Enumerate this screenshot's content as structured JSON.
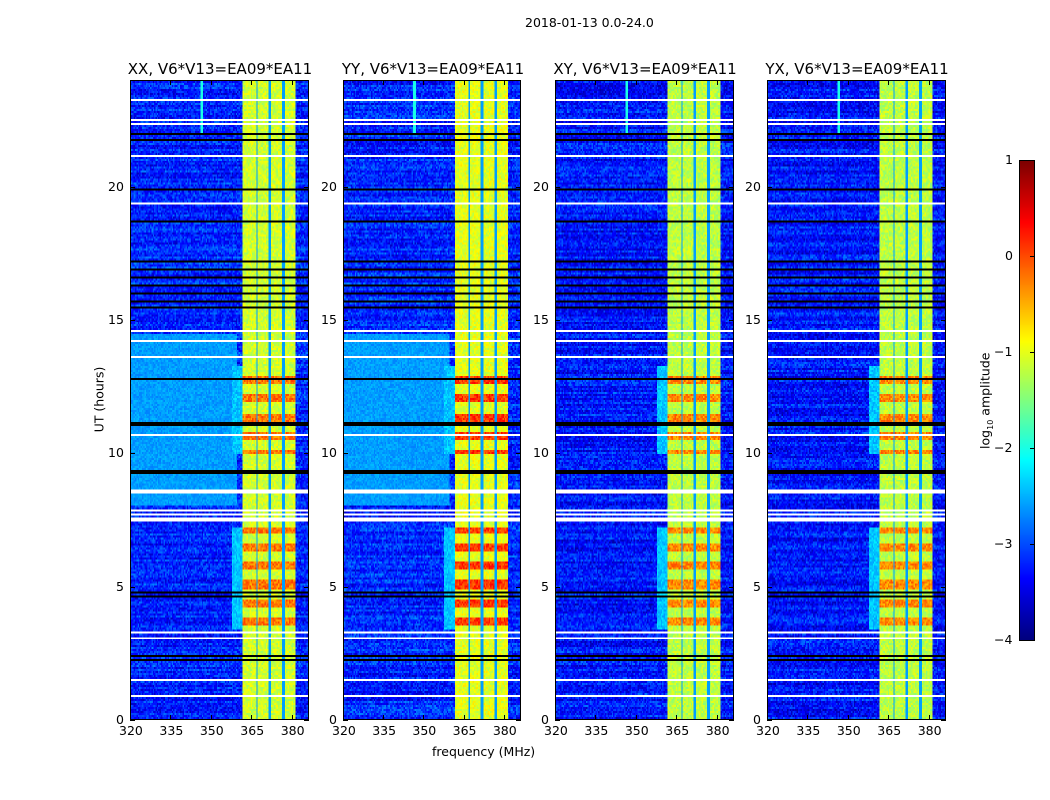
{
  "chart_data": {
    "type": "heatmap",
    "title": "2018-01-13 0.0-24.0",
    "xlabel": "frequency (MHz)",
    "ylabel": "UT (hours)",
    "xlim": [
      320,
      386.4
    ],
    "ylim": [
      0,
      24
    ],
    "xticks": [
      "320",
      "335",
      "350",
      "365",
      "380"
    ],
    "xtick_values": [
      320,
      335,
      350,
      365,
      380
    ],
    "yticks": [
      "0",
      "5",
      "10",
      "15",
      "20"
    ],
    "ytick_values": [
      0,
      5,
      10,
      15,
      20
    ],
    "panels": [
      {
        "title": "XX, V6*V13=EA09*EA11",
        "background_level": -3.2,
        "bright_background_hours": [
          8,
          14.5
        ],
        "band_level": -1.1,
        "hot_level": -0.2
      },
      {
        "title": "YY, V6*V13=EA09*EA11",
        "background_level": -3.2,
        "bright_background_hours": [
          8,
          14.5
        ],
        "band_level": -1.0,
        "hot_level": 0.1
      },
      {
        "title": "XY, V6*V13=EA09*EA11",
        "background_level": -3.3,
        "bright_background_hours": null,
        "band_level": -1.2,
        "hot_level": -0.3
      },
      {
        "title": "YX, V6*V13=EA09*EA11",
        "background_level": -3.3,
        "bright_background_hours": null,
        "band_level": -1.2,
        "hot_level": -0.3
      }
    ],
    "rfi_band_mhz": [
      362,
      382
    ],
    "rfi_gaps_mhz": [
      367.2,
      372,
      377.4
    ],
    "hot_hours": [
      [
        3.4,
        7.2
      ],
      [
        10,
        13.3
      ]
    ],
    "flagged_white_hours": [
      0.85,
      1.45,
      3.05,
      3.25,
      7.5,
      7.7,
      7.85,
      8.55,
      10.7,
      13.6,
      14.2,
      14.6,
      19.4,
      21.2,
      22.4,
      22.55,
      23.3
    ],
    "flagged_black_hours": [
      2.2,
      2.35,
      4.6,
      4.75,
      9.3,
      11.1,
      12.8,
      15.5,
      15.7,
      16.0,
      16.3,
      16.6,
      16.9,
      17.2,
      18.7,
      19.9,
      21.8,
      22.0
    ],
    "colorbar": {
      "label": "log10 amplitude",
      "range": [
        -4,
        1
      ],
      "ticks": [
        "1",
        "0",
        "−1",
        "−2",
        "−3",
        "−4"
      ],
      "tick_values": [
        1,
        0,
        -1,
        -2,
        -3,
        -4
      ],
      "colormap": "jet"
    }
  }
}
